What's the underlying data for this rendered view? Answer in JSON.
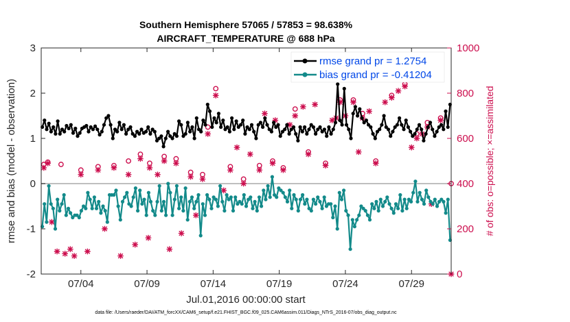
{
  "chart_data": {
    "type": "line",
    "title": "Southern Hemisphere 57065 / 57853 = 98.638%",
    "subtitle": "AIRCRAFT_TEMPERATURE @ 688 hPa",
    "xlabel": "Jul.01,2016 00:00:00 start",
    "ylabel": "rmse and bias (model - observation)",
    "ylabel_right": "# of obs: o=possible; ×=assimilated",
    "footer": "data file: /Users/raeder/DAI/ATM_forcXX/CAM6_setup/f.e21.FHIST_BGC.f09_025.CAM6assim.011/Diags_NTrS_2016-07/obs_diag_output.nc",
    "x_range": [
      1.0,
      32.0
    ],
    "x_tick_values": [
      4,
      9,
      14,
      19,
      24,
      29
    ],
    "x_tick_labels": [
      "07/04",
      "07/09",
      "07/14",
      "07/19",
      "07/24",
      "07/29"
    ],
    "ylim": [
      -2,
      3
    ],
    "y_ticks": [
      -2,
      -1,
      0,
      1,
      2,
      3
    ],
    "ylim_right": [
      0,
      1000
    ],
    "y_ticks_right": [
      0,
      200,
      400,
      600,
      800,
      1000
    ],
    "grid": false,
    "legend_position": "top-right",
    "colors": {
      "rmse": "#000000",
      "bias": "#138a8a",
      "obs": "#cc0d4d",
      "zero_line": "#bfbfbf"
    },
    "series": [
      {
        "name": "rmse grand pr = 1.2754",
        "axis": "left",
        "values": [
          1.25,
          1.4,
          1.2,
          1.33,
          1.15,
          1.25,
          1.1,
          1.38,
          1.1,
          1.2,
          1.15,
          1.28,
          1.22,
          1.3,
          1.12,
          1.22,
          1.05,
          1.12,
          1.22,
          1.25,
          1.28,
          1.15,
          1.25,
          1.2,
          1.27,
          1.2,
          1.08,
          1.15,
          1.3,
          1.45,
          1.5,
          1.3,
          1.0,
          1.2,
          1.15,
          1.35,
          1.2,
          1.3,
          1.1,
          1.2,
          1.25,
          1.1,
          1.05,
          1.15,
          1.1,
          1.2,
          1.12,
          1.15,
          1.25,
          1.1,
          1.2,
          1.15,
          0.95,
          1.0,
          1.05,
          0.82,
          1.0,
          1.15,
          1.05,
          1.0,
          1.1,
          1.05,
          1.38,
          1.3,
          1.05,
          1.1,
          1.35,
          1.15,
          1.25,
          1.0,
          1.45,
          1.2,
          1.15,
          1.4,
          1.3,
          1.75,
          1.6,
          1.25,
          1.45,
          1.35,
          1.55,
          1.25,
          1.4,
          1.2,
          1.25,
          1.15,
          1.45,
          1.2,
          1.38,
          1.25,
          1.3,
          1.4,
          1.1,
          1.25,
          1.2,
          1.3,
          1.15,
          1.0,
          1.3,
          1.35,
          1.25,
          1.45,
          1.3,
          1.2,
          1.15,
          1.35,
          1.25,
          1.3,
          1.05,
          1.15,
          1.2,
          1.3,
          1.1,
          1.2,
          1.25,
          1.1,
          0.95,
          1.25,
          1.15,
          1.25,
          1.1,
          1.2,
          1.3,
          1.25,
          1.1,
          1.2,
          1.25,
          1.15,
          1.2,
          1.05,
          1.25,
          1.1,
          1.2,
          1.35,
          2.2,
          1.4,
          1.3,
          2.1,
          1.3,
          1.2,
          1.0,
          1.55,
          1.7,
          1.5,
          1.65,
          1.45,
          1.35,
          1.4,
          1.3,
          1.25,
          1.1,
          1.0,
          1.15,
          1.2,
          1.3,
          1.5,
          1.25,
          1.2,
          1.05,
          1.15,
          1.25,
          1.3,
          1.45,
          1.3,
          1.2,
          1.4,
          1.25,
          1.15,
          1.05,
          1.1,
          1.2,
          1.3,
          1.2,
          0.95,
          1.1,
          1.25,
          1.35,
          1.2,
          1.05,
          1.15,
          1.25,
          1.3,
          1.2,
          1.6,
          1.25,
          1.75
        ]
      },
      {
        "name": "bias grand pr = -0.41204",
        "axis": "left",
        "values": [
          -0.95,
          -0.45,
          -0.85,
          -0.05,
          -0.45,
          -0.55,
          -1.0,
          -0.35,
          -0.6,
          -0.45,
          -0.25,
          -0.7,
          -0.55,
          -0.65,
          -0.75,
          -0.7,
          -0.7,
          -0.75,
          -0.6,
          -0.5,
          -0.55,
          -0.2,
          -0.35,
          -0.55,
          -0.3,
          -0.55,
          -0.4,
          -0.65,
          -0.5,
          -0.6,
          -0.85,
          -0.25,
          -0.25,
          -0.25,
          -0.15,
          -0.5,
          -0.8,
          -0.4,
          -0.3,
          -0.2,
          -0.45,
          -0.5,
          -0.3,
          -0.1,
          -0.6,
          -0.15,
          -0.45,
          -0.35,
          -0.7,
          -0.2,
          -0.4,
          -0.6,
          -0.7,
          -0.4,
          -0.05,
          -0.6,
          -0.4,
          -0.7,
          0.0,
          -0.2,
          -0.7,
          -0.35,
          -0.05,
          -0.55,
          -0.3,
          -0.6,
          -0.1,
          -0.8,
          -0.4,
          -0.3,
          -0.55,
          -0.4,
          -0.25,
          -1.15,
          -0.45,
          -0.7,
          -0.25,
          -0.35,
          -0.55,
          -0.3,
          -0.35,
          -0.5,
          -0.05,
          -0.4,
          -0.6,
          -0.25,
          -0.35,
          -0.3,
          -0.6,
          -0.3,
          -0.45,
          -0.4,
          -0.45,
          -0.25,
          -0.5,
          -0.35,
          -0.3,
          -0.55,
          -0.4,
          -0.6,
          -0.3,
          -0.5,
          -0.15,
          -0.35,
          -0.05,
          -0.3,
          0.15,
          -0.25,
          -0.3,
          -0.1,
          -0.15,
          -0.2,
          -0.3,
          -0.4,
          -0.15,
          -0.55,
          -0.25,
          -0.35,
          -0.6,
          -0.35,
          -0.25,
          -0.45,
          -0.35,
          -0.55,
          -0.6,
          -0.35,
          -0.45,
          -0.3,
          -0.4,
          -0.55,
          -0.3,
          -0.5,
          -0.45,
          -0.45,
          -0.75,
          -0.5,
          -1.0,
          -0.2,
          -0.35,
          -0.15,
          -0.6,
          -0.7,
          -1.45,
          -0.8,
          -0.95,
          -0.8,
          -0.7,
          -0.5,
          -0.55,
          -0.6,
          -0.7,
          -0.8,
          -0.45,
          -0.55,
          -0.4,
          -0.6,
          -0.35,
          -0.5,
          -0.4,
          -0.3,
          -0.45,
          -0.55,
          -0.65,
          -0.45,
          -0.55,
          -0.25,
          -0.6,
          -0.35,
          -0.55,
          -0.35,
          -0.4,
          -0.2,
          0.05,
          -0.4,
          -0.2,
          -0.35,
          -0.45,
          -0.15,
          -0.3,
          -0.4,
          -0.45,
          -0.35,
          -0.5,
          -0.4,
          -0.35,
          -0.4,
          -0.65,
          -0.35,
          -1.25
        ]
      }
    ],
    "obs_possible": [
      [
        1.2,
        485
      ],
      [
        1.5,
        495
      ],
      [
        2.5,
        485
      ],
      [
        4.0,
        460
      ],
      [
        5.3,
        475
      ],
      [
        6.5,
        480
      ],
      [
        7.6,
        500
      ],
      [
        8.5,
        530
      ],
      [
        9.2,
        490
      ],
      [
        10.3,
        520
      ],
      [
        11.2,
        510
      ],
      [
        12.3,
        450
      ],
      [
        13.2,
        440
      ],
      [
        13.6,
        650
      ],
      [
        14.2,
        820
      ],
      [
        15.3,
        475
      ],
      [
        16.3,
        420
      ],
      [
        17.5,
        480
      ],
      [
        18.5,
        500
      ],
      [
        19.3,
        470
      ],
      [
        20.2,
        730
      ],
      [
        21.2,
        540
      ],
      [
        22.5,
        490
      ],
      [
        23.6,
        770
      ],
      [
        24.6,
        770
      ],
      [
        25.3,
        710
      ],
      [
        26.3,
        500
      ],
      [
        27.5,
        790
      ],
      [
        28.5,
        840
      ],
      [
        29.4,
        620
      ],
      [
        30.2,
        670
      ],
      [
        31.2,
        690
      ],
      [
        32.0,
        400
      ]
    ],
    "obs_assimilated": [
      [
        1.2,
        470
      ],
      [
        1.5,
        490
      ],
      [
        1.8,
        230
      ],
      [
        2.2,
        100
      ],
      [
        2.8,
        90
      ],
      [
        3.2,
        110
      ],
      [
        3.5,
        80
      ],
      [
        4.0,
        440
      ],
      [
        4.5,
        100
      ],
      [
        5.3,
        460
      ],
      [
        5.8,
        200
      ],
      [
        6.5,
        470
      ],
      [
        7.0,
        80
      ],
      [
        7.6,
        440
      ],
      [
        8.1,
        130
      ],
      [
        8.5,
        510
      ],
      [
        9.1,
        160
      ],
      [
        9.2,
        470
      ],
      [
        9.8,
        440
      ],
      [
        10.3,
        500
      ],
      [
        10.7,
        110
      ],
      [
        11.2,
        490
      ],
      [
        11.6,
        180
      ],
      [
        12.3,
        430
      ],
      [
        12.7,
        260
      ],
      [
        13.2,
        420
      ],
      [
        13.6,
        620
      ],
      [
        14.2,
        790
      ],
      [
        14.8,
        370
      ],
      [
        15.3,
        460
      ],
      [
        15.8,
        560
      ],
      [
        16.3,
        400
      ],
      [
        16.8,
        530
      ],
      [
        17.5,
        460
      ],
      [
        17.9,
        710
      ],
      [
        18.5,
        490
      ],
      [
        18.7,
        680
      ],
      [
        19.3,
        460
      ],
      [
        19.8,
        660
      ],
      [
        20.2,
        700
      ],
      [
        20.8,
        740
      ],
      [
        21.2,
        530
      ],
      [
        21.7,
        750
      ],
      [
        22.5,
        480
      ],
      [
        23.0,
        680
      ],
      [
        23.3,
        690
      ],
      [
        23.6,
        760
      ],
      [
        24.0,
        700
      ],
      [
        24.6,
        760
      ],
      [
        25.0,
        540
      ],
      [
        25.3,
        690
      ],
      [
        25.8,
        720
      ],
      [
        26.3,
        490
      ],
      [
        27.0,
        760
      ],
      [
        27.5,
        780
      ],
      [
        28.0,
        810
      ],
      [
        28.5,
        830
      ],
      [
        29.0,
        560
      ],
      [
        29.4,
        600
      ],
      [
        29.8,
        620
      ],
      [
        30.2,
        650
      ],
      [
        30.5,
        310
      ],
      [
        31.2,
        680
      ],
      [
        32.0,
        0
      ]
    ]
  }
}
